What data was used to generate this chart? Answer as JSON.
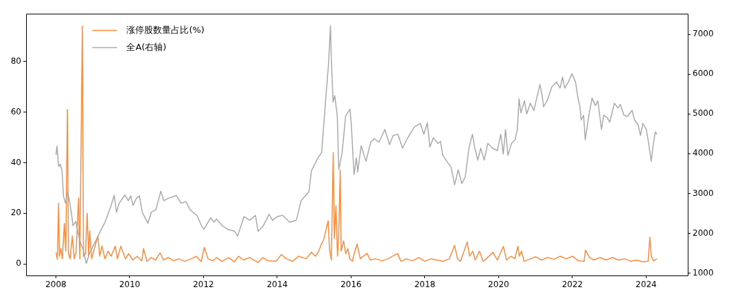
{
  "chart_data": {
    "type": "line",
    "xlim": [
      "2007-03-12",
      "2025-02-16"
    ],
    "xticks": [
      "2008",
      "2010",
      "2012",
      "2014",
      "2016",
      "2018",
      "2020",
      "2022",
      "2024"
    ],
    "ylim": [
      -4.6,
      98.9
    ],
    "yticks": [
      0,
      20,
      40,
      60,
      80
    ],
    "y2lim": [
      940,
      7520
    ],
    "y2ticks": [
      1000,
      2000,
      3000,
      4000,
      5000,
      6000,
      7000
    ],
    "legend": "top left",
    "series": [
      {
        "name": "涨停股数量占比(%)",
        "color": "#fe8a3a",
        "x": [
          "2008-01-02",
          "2008-01-15",
          "2008-01-28",
          "2008-02-05",
          "2008-02-20",
          "2008-03-05",
          "2008-03-25",
          "2008-04-08",
          "2008-04-24",
          "2008-05-05",
          "2008-05-20",
          "2008-06-12",
          "2008-07-01",
          "2008-07-20",
          "2008-08-12",
          "2008-08-25",
          "2008-09-19",
          "2008-09-30",
          "2008-10-20",
          "2008-11-06",
          "2008-11-20",
          "2008-12-01",
          "2008-12-20",
          "2009-01-15",
          "2009-02-20",
          "2009-03-10",
          "2009-04-01",
          "2009-05-01",
          "2009-06-01",
          "2009-07-01",
          "2009-08-10",
          "2009-09-01",
          "2009-10-05",
          "2009-11-20",
          "2009-12-20",
          "2010-02-01",
          "2010-03-15",
          "2010-05-01",
          "2010-05-18",
          "2010-06-20",
          "2010-08-01",
          "2010-09-15",
          "2010-10-28",
          "2010-12-01",
          "2011-01-20",
          "2011-03-10",
          "2011-05-01",
          "2011-07-01",
          "2011-09-01",
          "2011-10-24",
          "2011-12-10",
          "2012-01-09",
          "2012-02-15",
          "2012-04-01",
          "2012-05-10",
          "2012-07-01",
          "2012-09-07",
          "2012-11-01",
          "2012-12-14",
          "2013-02-01",
          "2013-04-01",
          "2013-06-25",
          "2013-08-10",
          "2013-10-01",
          "2013-12-20",
          "2014-02-10",
          "2014-04-01",
          "2014-06-01",
          "2014-08-01",
          "2014-10-15",
          "2014-12-05",
          "2015-01-15",
          "2015-02-15",
          "2015-03-15",
          "2015-04-01",
          "2015-05-20",
          "2015-06-01",
          "2015-06-20",
          "2015-07-09",
          "2015-07-20",
          "2015-08-05",
          "2015-08-20",
          "2015-09-01",
          "2015-09-16",
          "2015-09-25",
          "2015-10-20",
          "2015-11-10",
          "2015-12-01",
          "2015-12-20",
          "2016-01-15",
          "2016-02-01",
          "2016-03-01",
          "2016-04-01",
          "2016-05-01",
          "2016-06-08",
          "2016-07-10",
          "2016-09-01",
          "2016-11-01",
          "2017-01-01",
          "2017-04-05",
          "2017-05-10",
          "2017-07-01",
          "2017-09-01",
          "2017-11-01",
          "2018-01-01",
          "2018-03-01",
          "2018-05-01",
          "2018-07-01",
          "2018-09-01",
          "2018-10-22",
          "2018-11-20",
          "2018-12-20",
          "2019-02-25",
          "2019-03-20",
          "2019-04-20",
          "2019-05-15",
          "2019-06-25",
          "2019-08-01",
          "2019-09-01",
          "2019-11-05",
          "2019-12-20",
          "2020-02-17",
          "2020-03-20",
          "2020-05-01",
          "2020-06-10",
          "2020-07-10",
          "2020-07-25",
          "2020-08-15",
          "2020-09-10",
          "2020-11-01",
          "2021-01-01",
          "2021-03-01",
          "2021-05-01",
          "2021-07-01",
          "2021-09-01",
          "2021-11-01",
          "2022-01-01",
          "2022-03-01",
          "2022-04-27",
          "2022-05-10",
          "2022-06-20",
          "2022-08-01",
          "2022-10-01",
          "2022-12-01",
          "2023-02-01",
          "2023-04-01",
          "2023-06-01",
          "2023-08-01",
          "2023-10-01",
          "2023-12-01",
          "2024-01-20",
          "2024-02-07",
          "2024-02-20",
          "2024-03-15",
          "2024-04-17"
        ],
        "values": [
          4.5,
          1.8,
          24,
          3,
          6,
          2,
          16,
          5,
          61,
          4,
          2,
          11,
          2,
          5,
          26,
          2,
          94,
          3,
          4,
          20,
          3,
          13,
          2,
          6,
          11,
          3,
          7,
          2,
          5,
          3,
          7,
          2,
          7,
          2,
          4,
          1.5,
          3,
          1.2,
          6,
          1,
          2.5,
          1.5,
          4.4,
          1.5,
          2.5,
          1.2,
          2,
          1,
          2,
          3,
          0.8,
          6.5,
          2,
          1.2,
          2.5,
          1,
          2.5,
          0.8,
          3,
          1.5,
          2.5,
          0.5,
          2.5,
          1.2,
          1,
          3.7,
          2,
          1,
          3,
          2,
          4.6,
          3,
          5,
          8,
          9,
          17,
          6,
          1.5,
          44,
          10,
          23,
          3,
          12,
          37,
          5,
          9,
          4,
          6,
          2,
          1,
          4,
          7.8,
          2,
          3,
          4.1,
          1.5,
          2,
          1.2,
          2,
          4.1,
          1,
          2,
          1.2,
          2.5,
          1,
          2,
          1.5,
          1,
          2,
          7.3,
          2,
          1,
          8.7,
          3,
          5,
          1.5,
          5,
          1,
          2,
          4.5,
          1.5,
          6.9,
          1.5,
          3,
          2,
          6.9,
          3,
          5,
          1,
          1.8,
          2.8,
          1.5,
          2.5,
          1.8,
          3,
          2,
          3,
          1.2,
          1,
          5.4,
          2.5,
          1.5,
          2.5,
          1.5,
          2.5,
          1.5,
          2,
          1,
          1.5,
          0.8,
          1,
          10.6,
          3,
          1.2,
          2
        ]
      },
      {
        "name": "全A(右轴)",
        "color": "#a9a9a9",
        "axis": "y2",
        "x": [
          "2008-01-02",
          "2008-01-12",
          "2008-01-28",
          "2008-02-13",
          "2008-03-02",
          "2008-03-16",
          "2008-04-05",
          "2008-04-27",
          "2008-05-14",
          "2008-06-01",
          "2008-06-19",
          "2008-07-16",
          "2008-08-08",
          "2008-09-04",
          "2008-09-26",
          "2008-10-28",
          "2008-11-29",
          "2009-01-14",
          "2009-03-10",
          "2009-05-05",
          "2009-07-01",
          "2009-07-31",
          "2009-08-23",
          "2009-09-19",
          "2009-11-14",
          "2009-12-18",
          "2010-01-11",
          "2010-02-03",
          "2010-03-08",
          "2010-04-07",
          "2010-05-05",
          "2010-06-30",
          "2010-08-03",
          "2010-09-17",
          "2010-11-05",
          "2010-12-04",
          "2011-01-19",
          "2011-04-08",
          "2011-05-24",
          "2011-07-13",
          "2011-08-22",
          "2011-10-29",
          "2011-12-13",
          "2012-01-05",
          "2012-03-13",
          "2012-04-16",
          "2012-05-08",
          "2012-07-05",
          "2012-08-29",
          "2012-11-05",
          "2012-12-04",
          "2013-02-06",
          "2013-04-03",
          "2013-05-30",
          "2013-06-25",
          "2013-08-16",
          "2013-10-12",
          "2013-11-14",
          "2013-12-31",
          "2014-02-24",
          "2014-05-03",
          "2014-07-09",
          "2014-08-25",
          "2014-11-11",
          "2014-12-05",
          "2015-02-10",
          "2015-03-16",
          "2015-04-30",
          "2015-05-22",
          "2015-06-12",
          "2015-06-20",
          "2015-07-08",
          "2015-07-24",
          "2015-08-18",
          "2015-09-02",
          "2015-10-05",
          "2015-11-09",
          "2015-12-22",
          "2016-01-04",
          "2016-01-31",
          "2016-02-24",
          "2016-03-07",
          "2016-04-11",
          "2016-05-28",
          "2016-07-14",
          "2016-08-18",
          "2016-10-04",
          "2016-12-01",
          "2017-01-17",
          "2017-02-21",
          "2017-04-09",
          "2017-05-26",
          "2017-07-11",
          "2017-09-19",
          "2017-11-17",
          "2017-12-22",
          "2018-01-26",
          "2018-02-20",
          "2018-03-26",
          "2018-05-12",
          "2018-06-05",
          "2018-06-28",
          "2018-08-14",
          "2018-09-18",
          "2018-10-23",
          "2018-11-27",
          "2019-01-02",
          "2019-02-06",
          "2019-03-13",
          "2019-04-17",
          "2019-05-11",
          "2019-06-10",
          "2019-07-08",
          "2019-08-12",
          "2019-09-16",
          "2019-11-02",
          "2019-12-19",
          "2020-01-23",
          "2020-02-16",
          "2020-03-10",
          "2020-04-02",
          "2020-05-08",
          "2020-06-12",
          "2020-07-05",
          "2020-07-22",
          "2020-08-09",
          "2020-09-13",
          "2020-10-06",
          "2020-11-10",
          "2020-12-16",
          "2021-01-09",
          "2021-02-14",
          "2021-03-09",
          "2021-03-21",
          "2021-04-25",
          "2021-06-11",
          "2021-07-27",
          "2021-09-01",
          "2021-09-25",
          "2021-10-17",
          "2021-11-22",
          "2021-12-27",
          "2022-02-01",
          "2022-02-23",
          "2022-03-18",
          "2022-03-29",
          "2022-04-22",
          "2022-05-08",
          "2022-06-09",
          "2022-07-14",
          "2022-08-17",
          "2022-09-10",
          "2022-10-16",
          "2022-11-07",
          "2022-12-13",
          "2023-01-05",
          "2023-02-21",
          "2023-03-28",
          "2023-04-20",
          "2023-05-26",
          "2023-06-30",
          "2023-08-15",
          "2023-09-08",
          "2023-10-13",
          "2023-11-06",
          "2023-11-29",
          "2024-01-03",
          "2024-01-26",
          "2024-02-20",
          "2024-03-13",
          "2024-04-01",
          "2024-04-17"
        ],
        "values": [
          3970,
          4190,
          3680,
          3740,
          3570,
          2940,
          2760,
          3050,
          2830,
          2530,
          2190,
          2300,
          2020,
          1730,
          1610,
          1240,
          1500,
          1730,
          2020,
          2300,
          2700,
          2960,
          2530,
          2760,
          2960,
          2820,
          2940,
          2700,
          2880,
          2940,
          2530,
          2250,
          2530,
          2590,
          3060,
          2820,
          2880,
          2950,
          2760,
          2790,
          2590,
          2450,
          2190,
          2100,
          2390,
          2280,
          2360,
          2190,
          2100,
          2050,
          1930,
          2420,
          2330,
          2450,
          2050,
          2190,
          2480,
          2330,
          2420,
          2450,
          2280,
          2330,
          2820,
          3050,
          3570,
          3910,
          4030,
          5520,
          6210,
          7220,
          6380,
          5300,
          5460,
          4950,
          3600,
          4030,
          4950,
          5120,
          4730,
          3480,
          3900,
          3540,
          4200,
          3810,
          4290,
          4380,
          4290,
          4610,
          4230,
          4460,
          4490,
          4140,
          4380,
          4670,
          4760,
          4490,
          4780,
          4170,
          4400,
          4260,
          4310,
          3960,
          3780,
          3660,
          3220,
          3600,
          3250,
          3420,
          4140,
          4490,
          4140,
          3840,
          4140,
          3840,
          4260,
          4140,
          4080,
          4490,
          3990,
          4610,
          3960,
          4260,
          4350,
          4610,
          5380,
          5030,
          5330,
          5000,
          5270,
          5090,
          5360,
          5740,
          5440,
          5180,
          5330,
          5680,
          5800,
          5650,
          5930,
          5650,
          5800,
          6010,
          5800,
          5440,
          5150,
          4850,
          4960,
          4350,
          4900,
          5400,
          5210,
          5330,
          4610,
          4970,
          4910,
          4790,
          5270,
          5150,
          5240,
          4970,
          4940,
          5090,
          4850,
          4730,
          4460,
          4760,
          4610,
          4260,
          3810,
          4260,
          4550,
          4490
        ]
      }
    ]
  }
}
